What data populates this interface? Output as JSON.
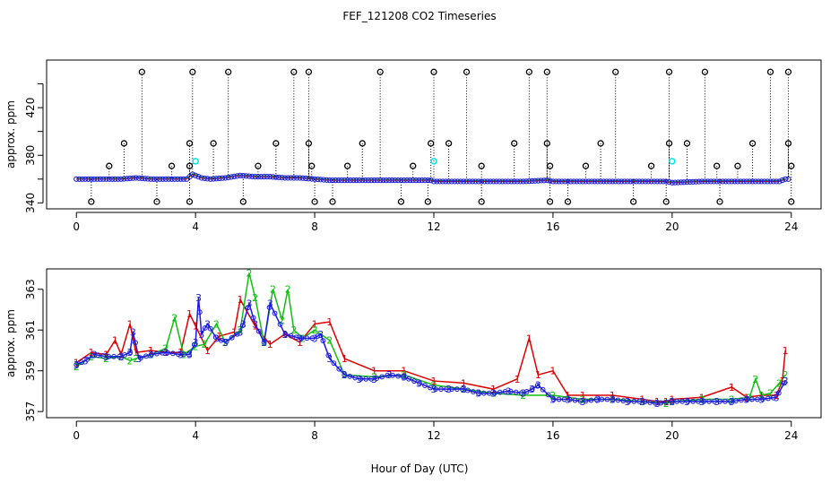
{
  "chart_data": {
    "title": "FEF_121208  CO2 Timeseries",
    "xlabel": "Hour of Day (UTC)",
    "type": "line",
    "panels": [
      {
        "name": "top",
        "ylabel": "approx. ppm",
        "xlim": [
          -1.0,
          25.0
        ],
        "ylim": [
          335,
          460
        ],
        "xticks": [
          "0",
          "4",
          "8",
          "12",
          "16",
          "20",
          "24"
        ],
        "yticks": [
          "340",
          "380",
          "420"
        ],
        "yticks_minor": [
          360,
          400,
          440
        ],
        "series": [
          {
            "name": "baseline",
            "color": "#1a1adc",
            "x": [
              0,
              0.5,
              1,
              1.5,
              2,
              2.5,
              3,
              3.5,
              3.7,
              3.9,
              4.2,
              4.5,
              5,
              5.5,
              6,
              6.5,
              7,
              7.5,
              8,
              8.5,
              9,
              10,
              11,
              11.9,
              12,
              13,
              14,
              15,
              15.8,
              16,
              17,
              18,
              19,
              19.8,
              20,
              21,
              22,
              23,
              23.6,
              23.8
            ],
            "y": [
              360,
              360,
              360,
              360,
              361,
              360,
              360,
              360,
              360,
              364,
              361,
              360,
              361,
              363,
              362,
              362,
              361,
              361,
              360,
              359,
              359,
              359,
              359,
              359,
              358,
              358,
              358,
              358,
              359,
              358,
              358,
              358,
              358,
              358,
              357,
              358,
              358,
              358,
              358,
              360
            ]
          },
          {
            "name": "high-spikes",
            "color": "#000000",
            "x": [
              2.2,
              3.9,
              5.1,
              7.3,
              7.8,
              10.2,
              12.0,
              13.1,
              15.2,
              15.8,
              18.1,
              19.9,
              21.1,
              23.3,
              23.9
            ],
            "y": [
              450,
              450,
              450,
              450,
              450,
              450,
              450,
              450,
              450,
              450,
              450,
              450,
              450,
              450,
              450
            ]
          },
          {
            "name": "mid-spikes",
            "color": "#000000",
            "x": [
              1.6,
              3.8,
              4.6,
              6.7,
              7.8,
              9.6,
              11.9,
              12.5,
              14.7,
              15.8,
              17.6,
              19.9,
              20.5,
              22.7,
              23.9
            ],
            "y": [
              390,
              390,
              390,
              390,
              390,
              390,
              390,
              390,
              390,
              390,
              390,
              390,
              390,
              390,
              390
            ]
          },
          {
            "name": "low-spikes",
            "color": "#000000",
            "x": [
              1.1,
              3.2,
              3.8,
              6.1,
              7.9,
              9.1,
              11.3,
              13.6,
              15.9,
              17.1,
              19.3,
              21.5,
              22.2,
              24.0
            ],
            "y": [
              371,
              371,
              371,
              371,
              371,
              371,
              371,
              371,
              371,
              371,
              371,
              371,
              371,
              371
            ]
          },
          {
            "name": "dips",
            "color": "#000000",
            "x": [
              0.5,
              2.7,
              3.8,
              5.6,
              8.0,
              8.6,
              10.9,
              11.8,
              13.6,
              15.9,
              16.5,
              18.7,
              19.8,
              21.6,
              24.0
            ],
            "y": [
              341,
              341,
              341,
              341,
              341,
              341,
              341,
              341,
              341,
              341,
              341,
              341,
              341,
              341,
              341
            ]
          },
          {
            "name": "flagged",
            "color": "#00e5e5",
            "x": [
              4.0,
              12.0,
              20.0
            ],
            "y": [
              375,
              375,
              375
            ]
          }
        ]
      },
      {
        "name": "bottom",
        "ylabel": "approx. ppm",
        "xlim": [
          -1.0,
          25.0
        ],
        "ylim": [
          356.7,
          364.0
        ],
        "xticks": [
          "0",
          "4",
          "8",
          "12",
          "16",
          "20",
          "24"
        ],
        "yticks": [
          "357",
          "359",
          "361",
          "363"
        ],
        "series": [
          {
            "name": "1",
            "label": "1",
            "color": "#e00000",
            "x": [
              0,
              0.5,
              1.0,
              1.3,
              1.5,
              1.8,
              2.0,
              2.5,
              3.0,
              3.5,
              3.8,
              4.0,
              4.4,
              4.8,
              5.3,
              5.5,
              6.0,
              6.5,
              7.0,
              7.5,
              8.0,
              8.5,
              9.0,
              10.0,
              11.0,
              12.0,
              13.0,
              14.0,
              14.8,
              15.2,
              15.5,
              16.0,
              16.5,
              17.0,
              18.0,
              19.0,
              19.5,
              19.8,
              20.0,
              21.0,
              22.0,
              22.5,
              23.0,
              23.5,
              23.7,
              23.8
            ],
            "y": [
              359.4,
              359.9,
              359.8,
              360.5,
              359.8,
              361.3,
              359.9,
              360.0,
              359.9,
              359.9,
              361.8,
              361.2,
              360.0,
              360.7,
              360.9,
              362.5,
              361.2,
              360.3,
              360.8,
              360.4,
              361.3,
              361.4,
              359.6,
              359.0,
              359.0,
              358.5,
              358.4,
              358.1,
              358.6,
              360.6,
              358.8,
              359.0,
              357.8,
              357.8,
              357.8,
              357.6,
              357.5,
              357.5,
              357.6,
              357.7,
              358.2,
              357.7,
              357.8,
              357.8,
              358.5,
              360.0
            ]
          },
          {
            "name": "2",
            "label": "2",
            "color": "#10c010",
            "x": [
              0,
              0.5,
              1.0,
              1.5,
              1.8,
              2.0,
              2.5,
              3.0,
              3.3,
              3.6,
              4.0,
              4.3,
              4.7,
              5.0,
              5.5,
              5.8,
              6.0,
              6.3,
              6.6,
              6.9,
              7.1,
              7.3,
              7.6,
              8.0,
              8.5,
              9.0,
              10.0,
              11.0,
              12.0,
              13.0,
              14.0,
              15.0,
              16.0,
              17.0,
              18.0,
              19.0,
              19.8,
              20.0,
              21.0,
              22.0,
              22.6,
              22.8,
              23.0,
              23.3,
              23.6,
              23.8
            ],
            "y": [
              359.2,
              359.7,
              359.6,
              359.7,
              359.5,
              359.6,
              359.8,
              360.1,
              361.6,
              359.8,
              360.2,
              360.3,
              361.3,
              360.4,
              361.0,
              363.8,
              362.6,
              360.4,
              363.0,
              361.5,
              363.0,
              361.0,
              360.6,
              361.0,
              360.5,
              358.8,
              358.7,
              358.8,
              358.3,
              358.1,
              357.9,
              357.8,
              357.8,
              357.6,
              357.6,
              357.5,
              357.4,
              357.5,
              357.6,
              357.6,
              357.7,
              358.6,
              357.8,
              357.9,
              358.4,
              358.8
            ]
          },
          {
            "name": "3",
            "label": "3",
            "color": "#1a1adc",
            "x": [
              0,
              0.3,
              0.6,
              1.0,
              1.5,
              1.8,
              1.9,
              2.1,
              2.5,
              3.0,
              3.5,
              3.8,
              4.0,
              4.1,
              4.2,
              4.4,
              4.7,
              5.0,
              5.5,
              5.6,
              5.8,
              6.0,
              6.3,
              6.5,
              7.0,
              7.5,
              8.0,
              8.2,
              8.5,
              9.0,
              9.5,
              10.0,
              10.5,
              11.0,
              11.5,
              12.0,
              12.5,
              13.0,
              13.5,
              14.0,
              14.5,
              15.0,
              15.3,
              15.5,
              16.0,
              16.5,
              17.0,
              17.5,
              18.0,
              18.5,
              19.0,
              19.5,
              20.0,
              20.5,
              21.0,
              21.5,
              22.0,
              22.5,
              23.0,
              23.5,
              23.8
            ],
            "y": [
              359.3,
              359.5,
              359.8,
              359.7,
              359.7,
              359.9,
              360.9,
              359.6,
              359.8,
              359.9,
              359.8,
              359.8,
              360.4,
              362.6,
              360.8,
              361.3,
              360.6,
              360.4,
              360.9,
              361.3,
              362.3,
              361.3,
              360.4,
              362.3,
              360.8,
              360.6,
              360.6,
              360.8,
              359.6,
              358.8,
              358.6,
              358.6,
              358.8,
              358.7,
              358.4,
              358.1,
              358.1,
              358.1,
              357.9,
              357.9,
              358.0,
              357.9,
              358.1,
              358.3,
              357.6,
              357.6,
              357.5,
              357.6,
              357.6,
              357.5,
              357.5,
              357.4,
              357.5,
              357.5,
              357.5,
              357.5,
              357.5,
              357.6,
              357.6,
              357.7,
              358.5
            ]
          }
        ]
      }
    ]
  }
}
